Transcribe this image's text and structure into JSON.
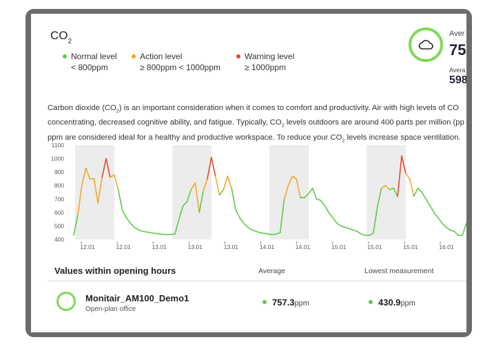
{
  "header": {
    "title_main": "CO",
    "title_sub": "2"
  },
  "legend": [
    {
      "label": "Normal level",
      "range": "< 800ppm",
      "color": "#5dc94a"
    },
    {
      "label": "Action level",
      "range": "≥ 800ppm < 1000ppm",
      "color": "#f5a623"
    },
    {
      "label": "Warning level",
      "range": "≥ 1000ppm",
      "color": "#e8452c"
    }
  ],
  "summary": {
    "avg_label": "Aver",
    "avg_value": "75",
    "low_label": "Avera",
    "low_value": "598",
    "icon": "cloud-icon"
  },
  "description": {
    "line1_a": "Carbon dioxide (CO",
    "line1_b": ") is an important consideration when it comes to comfort and productivity. Air with high levels of CO",
    "line2_a": "concentrating, decreased cognitive ability, and fatigue. Typically, CO",
    "line2_b": " levels outdoors are around 400 parts per million (pp",
    "line3_a": "ppm are considered ideal for a healthy and productive workspace. To reduce your CO",
    "line3_b": " levels increase space ventilation.",
    "sub": "2"
  },
  "chart_data": {
    "type": "line",
    "ylim": [
      400,
      1100
    ],
    "yticks": [
      400,
      500,
      600,
      700,
      800,
      900,
      1000,
      1100
    ],
    "xticks": [
      "12.01",
      "12.01",
      "13.01",
      "13.01",
      "13.01",
      "14.01",
      "14.01",
      "15.01",
      "15.01",
      "15.01",
      "16.01"
    ],
    "thresholds": {
      "action": 800,
      "warning": 1000
    },
    "series": [
      {
        "values": [
          430,
          580,
          800,
          930,
          850,
          850,
          670,
          860,
          1000,
          860,
          880,
          770,
          620,
          560,
          520,
          490,
          470,
          460,
          455,
          450,
          445,
          440,
          438,
          436,
          438,
          440,
          550,
          650,
          680,
          770,
          820,
          600,
          760,
          850,
          1010,
          870,
          730,
          770,
          870,
          780,
          620,
          560,
          520,
          490,
          470,
          460,
          450,
          445,
          440,
          436,
          440,
          450,
          700,
          800,
          870,
          850,
          710,
          710,
          740,
          780,
          700,
          690,
          650,
          600,
          560,
          520,
          500,
          490,
          480,
          470,
          460,
          440,
          430,
          430,
          445,
          640,
          780,
          800,
          770,
          780,
          720,
          1020,
          890,
          850,
          720,
          780,
          750,
          700,
          650,
          600,
          560,
          520,
          490,
          470,
          460,
          430,
          430,
          520
        ]
      }
    ]
  },
  "table": {
    "header_title": "Values within opening hours",
    "col_average": "Average",
    "col_lowest": "Lowest measurement",
    "rows": [
      {
        "name": "Monitair_AM100_Demo1",
        "location": "Open-plan office",
        "average": "757.3",
        "lowest": "430.9",
        "unit": "ppm"
      }
    ]
  }
}
